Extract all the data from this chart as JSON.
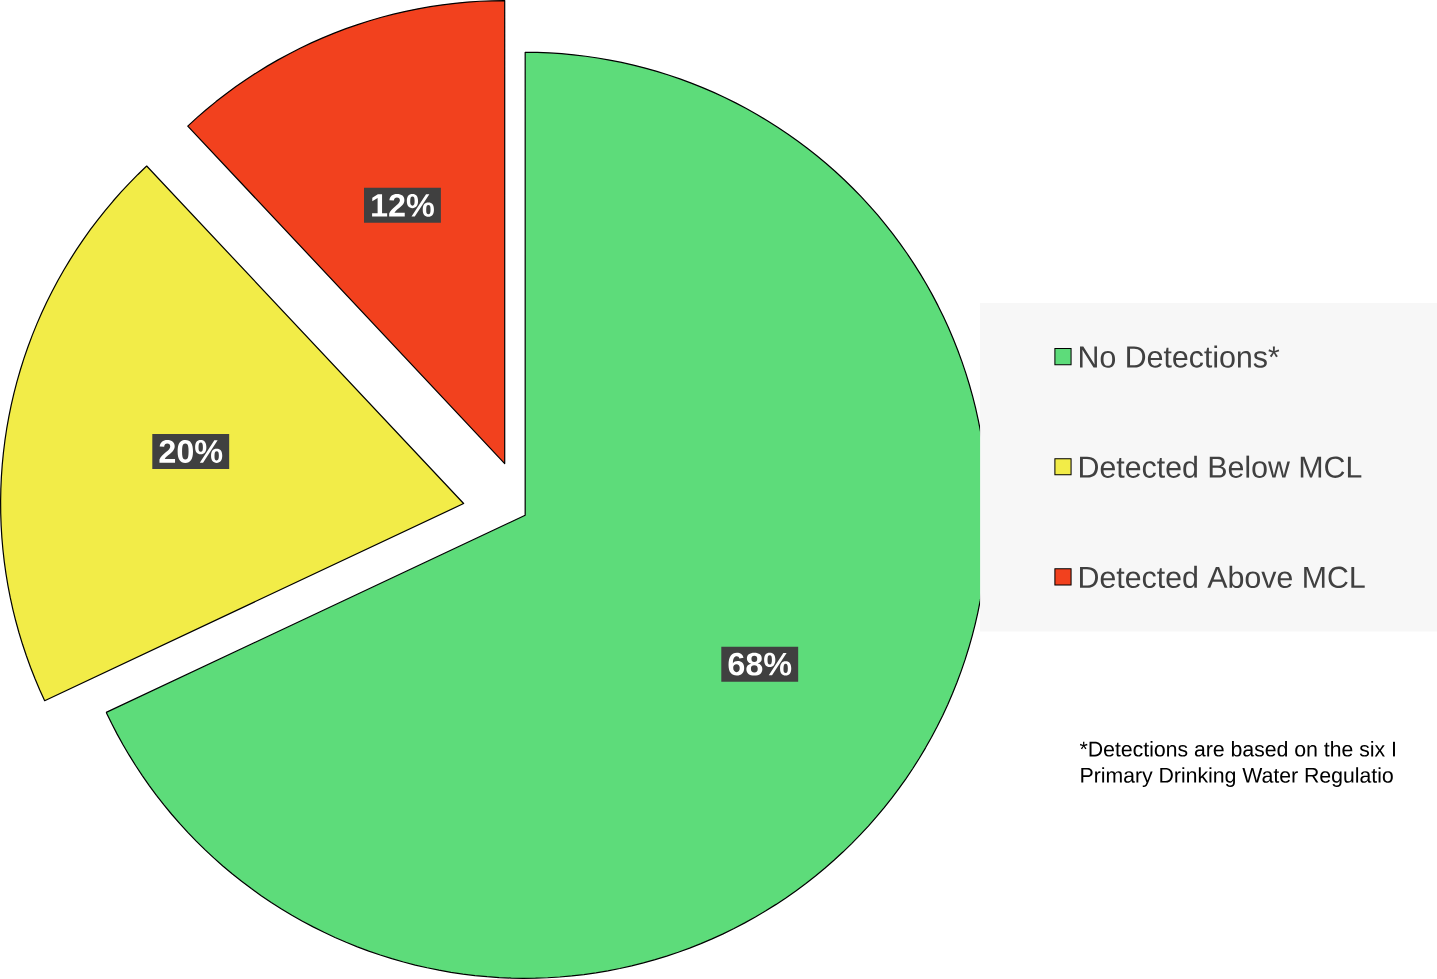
{
  "chart_data": {
    "type": "pie",
    "categories": [
      "No Detections*",
      "Detected Below MCL",
      "Detected Above MCL"
    ],
    "values": [
      68,
      20,
      12
    ],
    "colors": [
      "#5ddc7a",
      "#f2ec48",
      "#f2411e"
    ],
    "value_labels": [
      "68%",
      "20%",
      "12%"
    ],
    "legend": "right",
    "annotations": [
      "*Detections are based on the six I",
      "Primary Drinking Water Regulatio"
    ]
  }
}
